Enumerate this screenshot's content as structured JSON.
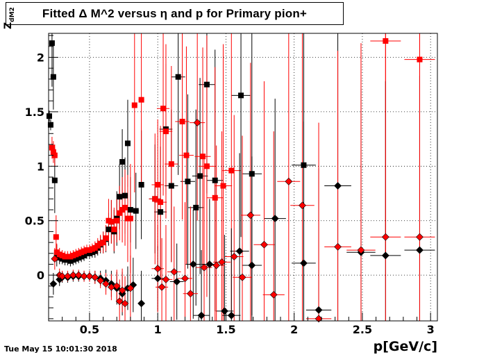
{
  "title": "Fitted Δ M^2 versus η and p for Primary pion+",
  "footer": {
    "date": "Tue May 15 10:01:30 2018"
  },
  "chart_data": {
    "type": "scatter",
    "title": "Fitted Δ M^2 versus η and p for Primary pion+",
    "xlabel": "p[GeV/c]",
    "ylabel_main": "Z",
    "ylabel_sub": "dM2",
    "xlim": [
      0.2,
      3.05
    ],
    "ylim": [
      -0.42,
      2.22
    ],
    "x_ticks": [
      "0.5",
      "1",
      "1.5",
      "2",
      "2.5",
      "3"
    ],
    "x_tick_values": [
      0.5,
      1,
      1.5,
      2,
      2.5,
      3
    ],
    "y_ticks": [
      "0",
      "0.5",
      "1",
      "1.5",
      "2"
    ],
    "y_tick_values": [
      0,
      0.5,
      1,
      1.5,
      2
    ],
    "grid": true,
    "colors": {
      "black": "#000000",
      "red": "#ff0000"
    },
    "series": [
      {
        "marker": "square",
        "color": "#000000",
        "points": [
          [
            0.205,
            1.46,
            0.05
          ],
          [
            0.215,
            1.38,
            0.05
          ],
          [
            0.225,
            2.13,
            0.4
          ],
          [
            0.235,
            1.82,
            0.3
          ],
          [
            0.245,
            0.87,
            0.3
          ],
          [
            0.26,
            0.18,
            0.1
          ],
          [
            0.28,
            0.16,
            0.06
          ],
          [
            0.3,
            0.15,
            0.05
          ],
          [
            0.32,
            0.14,
            0.05
          ],
          [
            0.34,
            0.14,
            0.05
          ],
          [
            0.36,
            0.13,
            0.05
          ],
          [
            0.38,
            0.14,
            0.05
          ],
          [
            0.4,
            0.15,
            0.05
          ],
          [
            0.42,
            0.16,
            0.05
          ],
          [
            0.44,
            0.17,
            0.05
          ],
          [
            0.46,
            0.18,
            0.05
          ],
          [
            0.48,
            0.2,
            0.05
          ],
          [
            0.5,
            0.2,
            0.05
          ],
          [
            0.52,
            0.21,
            0.05
          ],
          [
            0.54,
            0.22,
            0.06
          ],
          [
            0.56,
            0.25,
            0.07
          ],
          [
            0.58,
            0.28,
            0.08
          ],
          [
            0.6,
            0.3,
            0.1
          ],
          [
            0.62,
            0.33,
            0.12
          ],
          [
            0.64,
            0.42,
            0.15
          ],
          [
            0.66,
            0.49,
            0.2
          ],
          [
            0.68,
            0.4,
            0.2
          ],
          [
            0.7,
            0.52,
            0.25
          ],
          [
            0.72,
            0.72,
            0.3
          ],
          [
            0.74,
            1.04,
            0.3
          ],
          [
            0.76,
            0.73,
            0.35
          ],
          [
            0.78,
            1.21,
            0.4
          ],
          [
            0.8,
            0.6,
            0.3
          ],
          [
            0.84,
            0.59,
            0.35
          ],
          [
            0.88,
            0.83,
            0.5
          ],
          [
            0.98,
            0.7,
            0.5
          ],
          [
            1.02,
            0.58,
            0.6
          ],
          [
            1.06,
            1.34,
            0.6
          ],
          [
            1.1,
            0.82,
            0.7
          ],
          [
            1.15,
            1.82,
            0.9
          ],
          [
            1.22,
            0.86,
            0.8
          ],
          [
            1.28,
            0.62,
            0.9
          ],
          [
            1.31,
            0.91,
            0.9
          ],
          [
            1.36,
            1.75,
            1.0
          ],
          [
            1.42,
            0.87,
            1.2
          ],
          [
            1.61,
            1.65,
            1.3
          ],
          [
            1.69,
            0.93,
            1.3
          ],
          [
            2.07,
            1.01,
            1.5
          ]
        ]
      },
      {
        "marker": "square",
        "color": "#ff0000",
        "points": [
          [
            0.225,
            1.17,
            0.1
          ],
          [
            0.235,
            1.13,
            0.1
          ],
          [
            0.245,
            1.1,
            0.1
          ],
          [
            0.255,
            0.35,
            0.2
          ],
          [
            0.26,
            0.21,
            0.08
          ],
          [
            0.28,
            0.19,
            0.06
          ],
          [
            0.3,
            0.18,
            0.05
          ],
          [
            0.32,
            0.17,
            0.05
          ],
          [
            0.34,
            0.17,
            0.05
          ],
          [
            0.36,
            0.17,
            0.05
          ],
          [
            0.38,
            0.18,
            0.05
          ],
          [
            0.4,
            0.19,
            0.05
          ],
          [
            0.42,
            0.2,
            0.05
          ],
          [
            0.44,
            0.21,
            0.05
          ],
          [
            0.46,
            0.22,
            0.05
          ],
          [
            0.48,
            0.23,
            0.05
          ],
          [
            0.5,
            0.23,
            0.05
          ],
          [
            0.52,
            0.24,
            0.05
          ],
          [
            0.54,
            0.25,
            0.06
          ],
          [
            0.56,
            0.27,
            0.07
          ],
          [
            0.58,
            0.29,
            0.08
          ],
          [
            0.6,
            0.3,
            0.1
          ],
          [
            0.62,
            0.34,
            0.12
          ],
          [
            0.64,
            0.5,
            0.2
          ],
          [
            0.66,
            0.49,
            0.2
          ],
          [
            0.68,
            0.42,
            0.2
          ],
          [
            0.7,
            0.5,
            0.2
          ],
          [
            0.72,
            0.57,
            0.25
          ],
          [
            0.74,
            0.6,
            0.3
          ],
          [
            0.76,
            0.62,
            0.35
          ],
          [
            0.78,
            0.52,
            0.4
          ],
          [
            0.8,
            0.52,
            0.5
          ],
          [
            0.83,
            1.56,
            0.8
          ],
          [
            0.88,
            1.61,
            0.8
          ],
          [
            0.98,
            0.7,
            0.6
          ],
          [
            1.0,
            0.83,
            0.6
          ],
          [
            1.02,
            0.67,
            0.7
          ],
          [
            1.04,
            1.53,
            0.8
          ],
          [
            1.06,
            1.32,
            0.8
          ],
          [
            1.1,
            1.02,
            0.9
          ],
          [
            1.18,
            1.41,
            0.9
          ],
          [
            1.21,
            1.1,
            1.0
          ],
          [
            1.33,
            1.09,
            1.0
          ],
          [
            1.36,
            1.0,
            1.2
          ],
          [
            1.42,
            0.71,
            1.2
          ],
          [
            1.48,
            0.82,
            1.3
          ],
          [
            1.54,
            0.96,
            1.3
          ],
          [
            2.67,
            2.15,
            2.0
          ],
          [
            2.92,
            1.98,
            2.0
          ]
        ]
      },
      {
        "marker": "diamond",
        "color": "#000000",
        "points": [
          [
            0.235,
            -0.08,
            0.1
          ],
          [
            0.28,
            -0.04,
            0.06
          ],
          [
            0.3,
            -0.02,
            0.05
          ],
          [
            0.34,
            -0.02,
            0.05
          ],
          [
            0.38,
            -0.01,
            0.05
          ],
          [
            0.42,
            -0.01,
            0.05
          ],
          [
            0.46,
            -0.01,
            0.05
          ],
          [
            0.5,
            -0.01,
            0.05
          ],
          [
            0.54,
            -0.02,
            0.06
          ],
          [
            0.58,
            -0.03,
            0.07
          ],
          [
            0.62,
            -0.05,
            0.1
          ],
          [
            0.66,
            -0.08,
            0.12
          ],
          [
            0.7,
            -0.12,
            0.15
          ],
          [
            0.74,
            -0.17,
            0.2
          ],
          [
            0.78,
            -0.12,
            0.2
          ],
          [
            0.82,
            -0.09,
            0.25
          ],
          [
            0.88,
            -0.26,
            0.3
          ],
          [
            1.0,
            -0.03,
            0.3
          ],
          [
            1.14,
            -0.06,
            0.35
          ],
          [
            1.26,
            0.1,
            0.5
          ],
          [
            1.32,
            -0.37,
            0.6
          ],
          [
            1.38,
            0.1,
            0.6
          ],
          [
            1.49,
            -0.33,
            0.7
          ],
          [
            1.54,
            -0.37,
            0.8
          ],
          [
            1.6,
            0.22,
            0.9
          ],
          [
            1.69,
            0.09,
            1.0
          ],
          [
            1.86,
            0.52,
            1.1
          ],
          [
            2.07,
            0.11,
            1.3
          ],
          [
            2.18,
            -0.32,
            1.3
          ],
          [
            2.32,
            0.82,
            1.5
          ],
          [
            2.49,
            0.21,
            1.5
          ],
          [
            2.67,
            0.18,
            1.6
          ],
          [
            2.92,
            0.23,
            1.6
          ]
        ]
      },
      {
        "marker": "diamond",
        "color": "#ff0000",
        "points": [
          [
            0.245,
            0.15,
            0.1
          ],
          [
            0.28,
            0.0,
            0.06
          ],
          [
            0.3,
            -0.01,
            0.05
          ],
          [
            0.34,
            -0.01,
            0.05
          ],
          [
            0.38,
            0.0,
            0.05
          ],
          [
            0.42,
            0.0,
            0.05
          ],
          [
            0.46,
            -0.01,
            0.05
          ],
          [
            0.5,
            -0.01,
            0.05
          ],
          [
            0.54,
            -0.02,
            0.06
          ],
          [
            0.58,
            -0.05,
            0.07
          ],
          [
            0.62,
            -0.08,
            0.1
          ],
          [
            0.66,
            -0.11,
            0.12
          ],
          [
            0.7,
            -0.1,
            0.15
          ],
          [
            0.72,
            -0.24,
            0.2
          ],
          [
            0.74,
            -0.14,
            0.2
          ],
          [
            0.76,
            -0.26,
            0.25
          ],
          [
            0.8,
            -0.12,
            0.3
          ],
          [
            1.0,
            0.06,
            0.4
          ],
          [
            1.03,
            -0.11,
            0.45
          ],
          [
            1.06,
            -0.04,
            0.5
          ],
          [
            1.12,
            0.03,
            0.6
          ],
          [
            1.2,
            -0.03,
            0.7
          ],
          [
            1.24,
            -0.17,
            0.8
          ],
          [
            1.29,
            1.4,
            0.9
          ],
          [
            1.34,
            0.07,
            1.0
          ],
          [
            1.43,
            0.09,
            1.1
          ],
          [
            1.47,
            0.12,
            1.2
          ],
          [
            1.56,
            0.17,
            1.3
          ],
          [
            1.62,
            -0.02,
            1.3
          ],
          [
            1.68,
            0.55,
            1.4
          ],
          [
            1.78,
            0.28,
            1.5
          ],
          [
            1.85,
            -0.18,
            1.5
          ],
          [
            1.96,
            0.86,
            1.6
          ],
          [
            2.06,
            0.64,
            1.6
          ],
          [
            2.18,
            -0.4,
            1.8
          ],
          [
            2.32,
            0.26,
            1.8
          ],
          [
            2.49,
            0.23,
            1.9
          ],
          [
            2.67,
            0.35,
            2.0
          ],
          [
            2.92,
            0.35,
            2.0
          ]
        ]
      }
    ]
  }
}
